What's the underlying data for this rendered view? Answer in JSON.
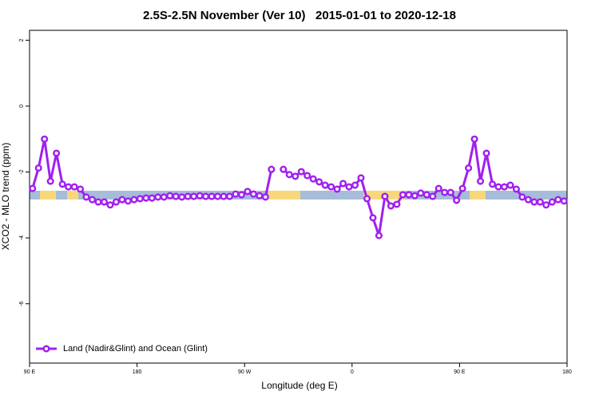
{
  "chart_data": {
    "type": "line",
    "title": "2.5S-2.5N November (Ver 10)   2015-01-01 to 2020-12-18",
    "xlabel": "Longitude (deg E)",
    "ylabel": "XCO2 - MLO trend (ppm)",
    "xlim": [
      90,
      540
    ],
    "ylim": [
      -7.8,
      2.3
    ],
    "xticks": [
      {
        "value": 90,
        "label": "90 E"
      },
      180,
      {
        "value": 270,
        "label": "90 W"
      },
      {
        "value": 360,
        "label": "0"
      },
      {
        "value": 450,
        "label": "90 E"
      },
      {
        "value": 540,
        "label": "180"
      }
    ],
    "yticks": [
      2,
      0,
      -2,
      -4,
      -6
    ],
    "legend": "bottom-left",
    "x": [
      92.5,
      97.5,
      102.5,
      107.5,
      112.5,
      117.5,
      122.5,
      127.5,
      132.5,
      137.5,
      142.5,
      147.5,
      152.5,
      157.5,
      162.5,
      167.5,
      172.5,
      177.5,
      182.5,
      187.5,
      192.5,
      197.5,
      202.5,
      207.5,
      212.5,
      217.5,
      222.5,
      227.5,
      232.5,
      237.5,
      242.5,
      247.5,
      252.5,
      257.5,
      262.5,
      267.5,
      272.5,
      277.5,
      282.5,
      287.5,
      292.5,
      297.5,
      302.5,
      307.5,
      312.5,
      317.5,
      322.5,
      327.5,
      332.5,
      337.5,
      342.5,
      347.5,
      352.5,
      357.5,
      362.5,
      367.5,
      372.5,
      377.5,
      382.5,
      387.5,
      392.5,
      397.5,
      402.5,
      407.5,
      412.5,
      417.5,
      422.5,
      427.5,
      432.5,
      437.5,
      442.5,
      447.5,
      452.5,
      457.5,
      462.5,
      467.5,
      472.5,
      477.5,
      482.5,
      487.5,
      492.5,
      497.5,
      502.5,
      507.5,
      512.5,
      517.5,
      522.5,
      527.5,
      532.5,
      537.5
    ],
    "series": [
      {
        "name": "Land (Nadir&Glint) and Ocean (Glint)",
        "color": "#a020f0",
        "values": [
          -2.5,
          -1.88,
          -1.0,
          -2.28,
          -1.43,
          -2.37,
          -2.45,
          -2.45,
          -2.52,
          -2.76,
          -2.84,
          -2.91,
          -2.91,
          -3.0,
          -2.91,
          -2.84,
          -2.88,
          -2.84,
          -2.81,
          -2.79,
          -2.79,
          -2.76,
          -2.76,
          -2.72,
          -2.74,
          -2.76,
          -2.74,
          -2.74,
          -2.72,
          -2.74,
          -2.74,
          -2.74,
          -2.74,
          -2.74,
          -2.67,
          -2.69,
          -2.59,
          -2.67,
          -2.72,
          -2.76,
          -1.92,
          null,
          -1.92,
          -2.08,
          -2.13,
          -1.99,
          -2.11,
          -2.21,
          -2.3,
          -2.4,
          -2.45,
          -2.52,
          -2.35,
          -2.45,
          -2.4,
          -2.18,
          -2.81,
          -3.39,
          -3.93,
          -2.74,
          -3.03,
          -2.98,
          -2.69,
          -2.69,
          -2.72,
          -2.64,
          -2.69,
          -2.74,
          -2.5,
          -2.62,
          -2.62,
          -2.86,
          -2.5,
          -1.88,
          -1.0,
          -2.28,
          -1.43,
          -2.37,
          -2.45,
          -2.45,
          -2.4,
          -2.52,
          -2.76,
          -2.84,
          -2.91,
          -2.91,
          -3.0,
          -2.91,
          -2.84,
          -2.88
        ]
      }
    ]
  }
}
